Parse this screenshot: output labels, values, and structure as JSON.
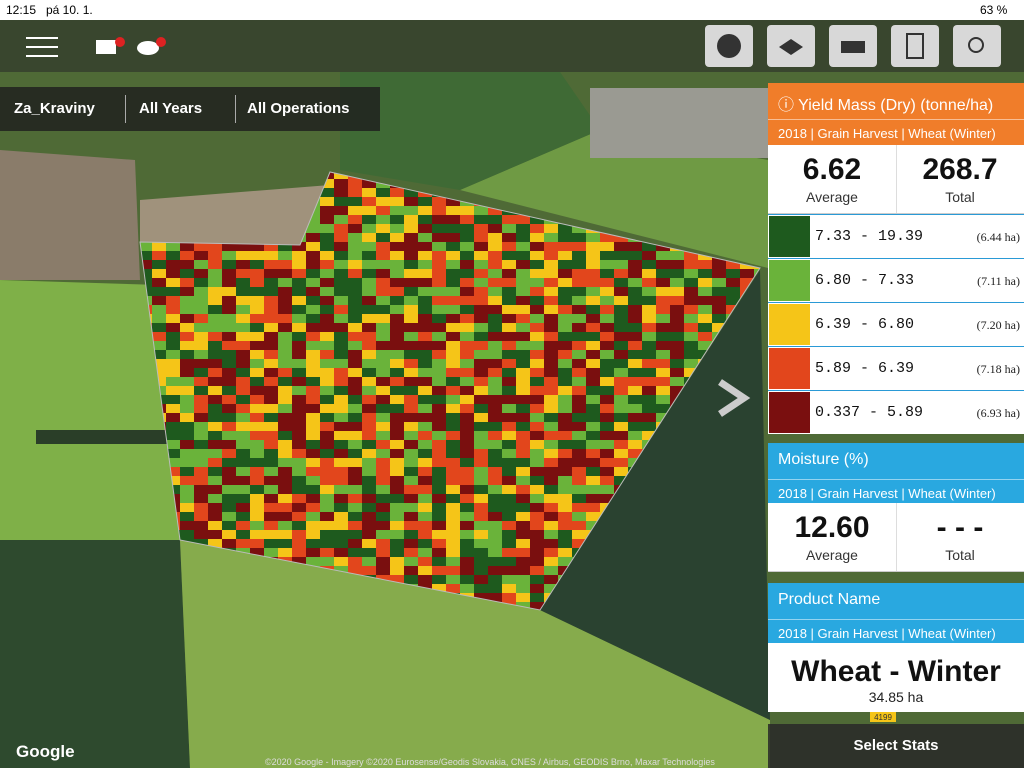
{
  "status_bar": {
    "time": "12:15",
    "date": "pá 10. 1.",
    "battery": "63 %"
  },
  "filters": {
    "field": "Za_Kraviny",
    "years": "All Years",
    "operations": "All Operations"
  },
  "yield_card": {
    "title": "Yield Mass (Dry) (tonne/ha)",
    "subtitle": "2018 | Grain Harvest | Wheat (Winter)",
    "average": "6.62",
    "average_label": "Average",
    "total": "268.7",
    "total_label": "Total",
    "legend": [
      {
        "range": "7.33 - 19.39",
        "area": "(6.44 ha)",
        "color": "#1e5a1e"
      },
      {
        "range": "6.80 -  7.33",
        "area": "(7.11 ha)",
        "color": "#6ab33a"
      },
      {
        "range": "6.39 -  6.80",
        "area": "(7.20 ha)",
        "color": "#f5c518"
      },
      {
        "range": "5.89 -  6.39",
        "area": "(7.18 ha)",
        "color": "#e2461c"
      },
      {
        "range": "0.337 -  5.89",
        "area": "(6.93 ha)",
        "color": "#7a0f0f"
      }
    ]
  },
  "moisture_card": {
    "title": "Moisture (%)",
    "subtitle": "2018 | Grain Harvest | Wheat (Winter)",
    "average": "12.60",
    "average_label": "Average",
    "total": "- - -",
    "total_label": "Total"
  },
  "product_card": {
    "title": "Product Name",
    "subtitle": "2018 | Grain Harvest | Wheat (Winter)",
    "name": "Wheat - Winter",
    "area": "34.85 ha"
  },
  "select_stats": "Select Stats",
  "map": {
    "logo": "Google",
    "attribution": "©2020 Google - Imagery ©2020 Eurosense/Geodis Slovakia, CNES / Airbus, GEODIS Brno, Maxar Technologies",
    "road_label": "4199"
  }
}
